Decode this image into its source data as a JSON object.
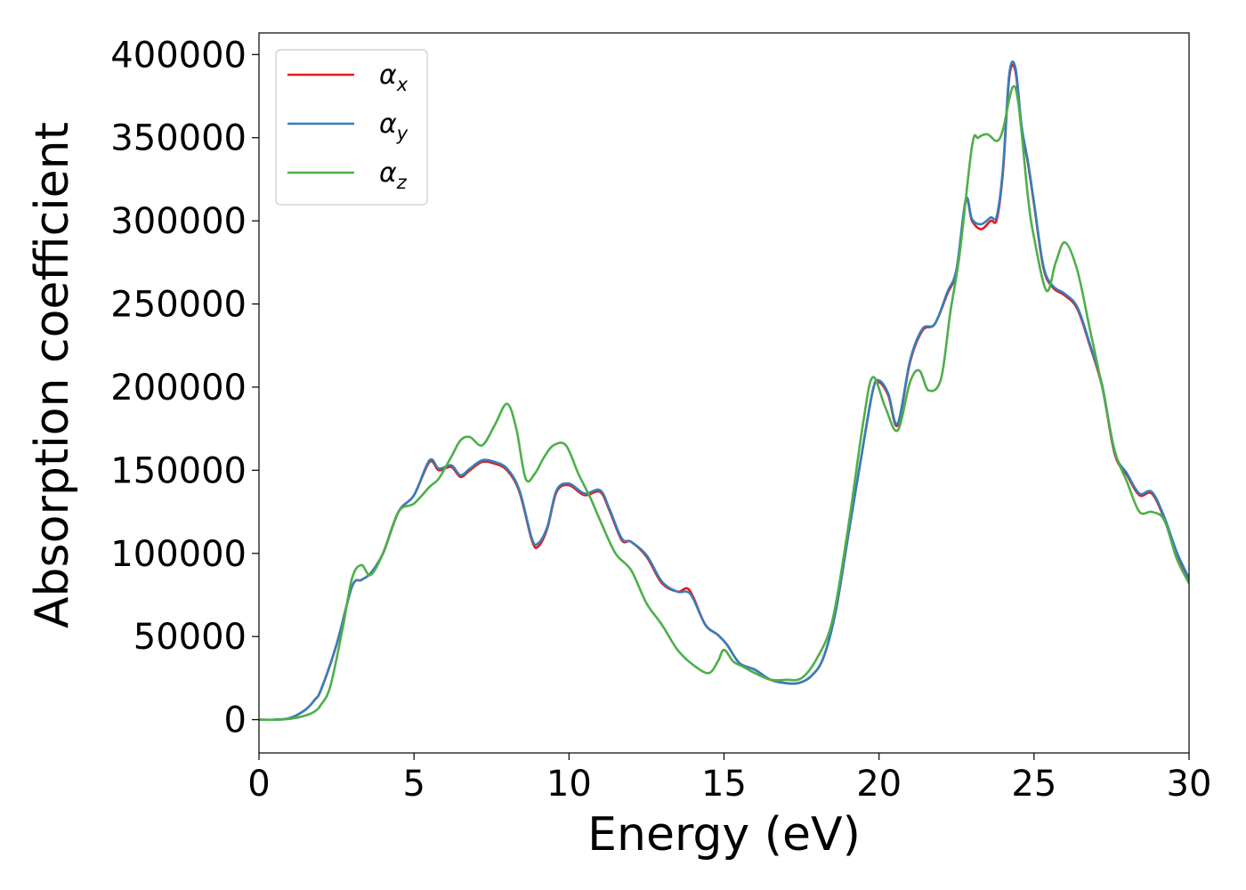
{
  "chart_data": {
    "type": "line",
    "xlabel": "Energy (eV)",
    "ylabel": "Absorption coefficient",
    "xlim": [
      0,
      30
    ],
    "ylim": [
      -20000,
      413000
    ],
    "x_ticks": [
      "0",
      "5",
      "10",
      "15",
      "20",
      "25",
      "30"
    ],
    "y_ticks": [
      "0",
      "50000",
      "100000",
      "150000",
      "200000",
      "250000",
      "300000",
      "350000",
      "400000"
    ],
    "grid": false,
    "legend_position": "top-left",
    "series": [
      {
        "name": "αx",
        "name_base": "α",
        "name_sub": "x",
        "color": "#e41a1c",
        "x": [
          0,
          0.5,
          1.0,
          1.5,
          1.8,
          2.0,
          2.5,
          3.0,
          3.3,
          3.6,
          4.0,
          4.5,
          5.0,
          5.5,
          5.8,
          6.2,
          6.5,
          6.8,
          7.2,
          7.6,
          8.0,
          8.4,
          8.8,
          9.0,
          9.3,
          9.6,
          10.0,
          10.5,
          11.0,
          11.3,
          11.7,
          12.0,
          12.5,
          13.0,
          13.5,
          13.8,
          14.0,
          14.4,
          14.8,
          15.1,
          15.5,
          16.0,
          16.5,
          17.0,
          17.4,
          17.8,
          18.2,
          18.6,
          19.0,
          19.4,
          19.8,
          20.0,
          20.3,
          20.6,
          21.0,
          21.4,
          21.8,
          22.2,
          22.5,
          22.8,
          23.0,
          23.3,
          23.6,
          23.8,
          24.0,
          24.2,
          24.4,
          24.6,
          24.8,
          25.0,
          25.3,
          25.6,
          26.0,
          26.4,
          26.8,
          27.2,
          27.6,
          28.0,
          28.4,
          28.8,
          29.2,
          29.6,
          30.0
        ],
        "y": [
          0,
          0,
          1000,
          6000,
          12000,
          18000,
          45000,
          80000,
          84000,
          88000,
          100000,
          125000,
          135000,
          155000,
          150000,
          152000,
          146000,
          150000,
          155000,
          154000,
          150000,
          137000,
          108000,
          104000,
          115000,
          137000,
          141000,
          135000,
          137000,
          126000,
          108000,
          107000,
          98000,
          82000,
          77000,
          79000,
          74000,
          57000,
          51000,
          45000,
          34000,
          30000,
          24000,
          22000,
          22000,
          26000,
          37000,
          65000,
          110000,
          155000,
          198000,
          203000,
          195000,
          177000,
          215000,
          234000,
          238000,
          256000,
          270000,
          312000,
          300000,
          295000,
          300000,
          301000,
          330000,
          386000,
          390000,
          355000,
          335000,
          310000,
          272000,
          260000,
          255000,
          247000,
          225000,
          200000,
          160000,
          147000,
          135000,
          136000,
          121000,
          100000,
          84000
        ]
      },
      {
        "name": "αy",
        "name_base": "α",
        "name_sub": "y",
        "color": "#377eb8",
        "x": [
          0,
          0.5,
          1.0,
          1.5,
          1.8,
          2.0,
          2.5,
          3.0,
          3.3,
          3.6,
          4.0,
          4.5,
          5.0,
          5.5,
          5.8,
          6.2,
          6.5,
          6.8,
          7.2,
          7.6,
          8.0,
          8.4,
          8.8,
          9.0,
          9.3,
          9.6,
          10.0,
          10.5,
          11.0,
          11.3,
          11.7,
          12.0,
          12.5,
          13.0,
          13.5,
          13.8,
          14.0,
          14.4,
          14.8,
          15.1,
          15.5,
          16.0,
          16.5,
          17.0,
          17.4,
          17.8,
          18.2,
          18.6,
          19.0,
          19.4,
          19.8,
          20.0,
          20.3,
          20.6,
          21.0,
          21.4,
          21.8,
          22.2,
          22.5,
          22.8,
          23.0,
          23.3,
          23.6,
          23.8,
          24.0,
          24.2,
          24.4,
          24.6,
          24.8,
          25.0,
          25.3,
          25.6,
          26.0,
          26.4,
          26.8,
          27.2,
          27.6,
          28.0,
          28.4,
          28.8,
          29.2,
          29.6,
          30.0
        ],
        "y": [
          0,
          0,
          1000,
          6000,
          12000,
          18000,
          45000,
          80000,
          84000,
          88000,
          100000,
          125000,
          135000,
          156000,
          151000,
          153000,
          147000,
          151000,
          156000,
          155000,
          151000,
          138000,
          109000,
          106000,
          116000,
          138000,
          142000,
          136000,
          138000,
          127000,
          109000,
          107000,
          99000,
          83000,
          77000,
          77000,
          73000,
          57000,
          51000,
          45000,
          34000,
          30000,
          24000,
          22000,
          22000,
          26000,
          37000,
          65000,
          110000,
          155000,
          198000,
          204000,
          196000,
          178000,
          216000,
          235000,
          238000,
          257000,
          271000,
          313000,
          301000,
          298000,
          302000,
          303000,
          332000,
          388000,
          392000,
          357000,
          336000,
          311000,
          273000,
          261000,
          256000,
          248000,
          226000,
          201000,
          161000,
          148000,
          136000,
          137000,
          122000,
          101000,
          85000
        ]
      },
      {
        "name": "αz",
        "name_base": "α",
        "name_sub": "z",
        "color": "#4daf4a",
        "x": [
          0,
          0.5,
          1.0,
          1.5,
          1.8,
          2.0,
          2.3,
          2.7,
          3.0,
          3.3,
          3.6,
          4.0,
          4.5,
          5.0,
          5.5,
          5.8,
          6.2,
          6.5,
          6.8,
          7.2,
          7.6,
          8.0,
          8.3,
          8.6,
          8.9,
          9.2,
          9.5,
          9.9,
          10.3,
          10.7,
          11.0,
          11.5,
          12.0,
          12.5,
          13.0,
          13.5,
          14.0,
          14.5,
          14.8,
          15.0,
          15.3,
          15.6,
          16.0,
          16.5,
          17.0,
          17.5,
          18.0,
          18.5,
          19.0,
          19.5,
          19.8,
          20.2,
          20.6,
          21.0,
          21.3,
          21.6,
          22.0,
          22.3,
          22.6,
          23.0,
          23.2,
          23.5,
          23.8,
          24.0,
          24.3,
          24.5,
          24.8,
          25.0,
          25.4,
          25.7,
          26.0,
          26.4,
          26.8,
          27.2,
          27.6,
          28.0,
          28.4,
          28.8,
          29.2,
          29.6,
          30.0
        ],
        "y": [
          0,
          0,
          500,
          2500,
          5000,
          9000,
          20000,
          55000,
          85000,
          93000,
          87000,
          100000,
          125000,
          130000,
          140000,
          145000,
          158000,
          168000,
          170000,
          165000,
          177000,
          190000,
          175000,
          145000,
          148000,
          158000,
          165000,
          165000,
          148000,
          133000,
          120000,
          100000,
          90000,
          70000,
          57000,
          42000,
          33000,
          28000,
          35000,
          42000,
          35000,
          32000,
          28000,
          24000,
          24000,
          25000,
          37000,
          60000,
          115000,
          180000,
          206000,
          188000,
          174000,
          203000,
          210000,
          198000,
          205000,
          245000,
          280000,
          345000,
          350000,
          352000,
          348000,
          355000,
          380000,
          370000,
          315000,
          290000,
          258000,
          275000,
          287000,
          270000,
          235000,
          200000,
          162000,
          143000,
          125000,
          125000,
          120000,
          97000,
          82000
        ]
      }
    ]
  }
}
